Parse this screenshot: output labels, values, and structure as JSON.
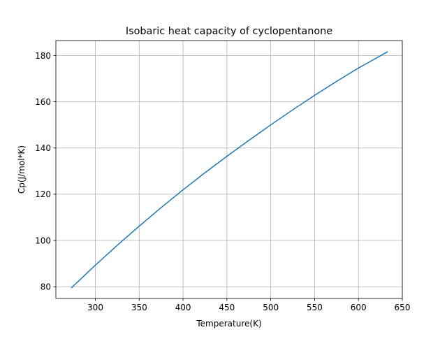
{
  "chart_data": {
    "type": "line",
    "title": "Isobaric heat capacity of cyclopentanone",
    "xlabel": "Temperature(K)",
    "ylabel": "Cp(J/mol*K)",
    "xlim": [
      255,
      650
    ],
    "ylim": [
      74.9,
      186.5
    ],
    "xticks": [
      300,
      350,
      400,
      450,
      500,
      550,
      600,
      650
    ],
    "yticks": [
      80,
      100,
      120,
      140,
      160,
      180
    ],
    "grid": true,
    "series": [
      {
        "color": "#1f77b4",
        "x": [
          273,
          300,
          325,
          350,
          375,
          400,
          425,
          450,
          475,
          500,
          525,
          550,
          575,
          600,
          633
        ],
        "y": [
          79.6,
          89.3,
          97.9,
          106.2,
          114.2,
          121.9,
          129.3,
          136.4,
          143.3,
          150.0,
          156.5,
          162.8,
          168.8,
          174.6,
          181.6
        ]
      }
    ]
  }
}
